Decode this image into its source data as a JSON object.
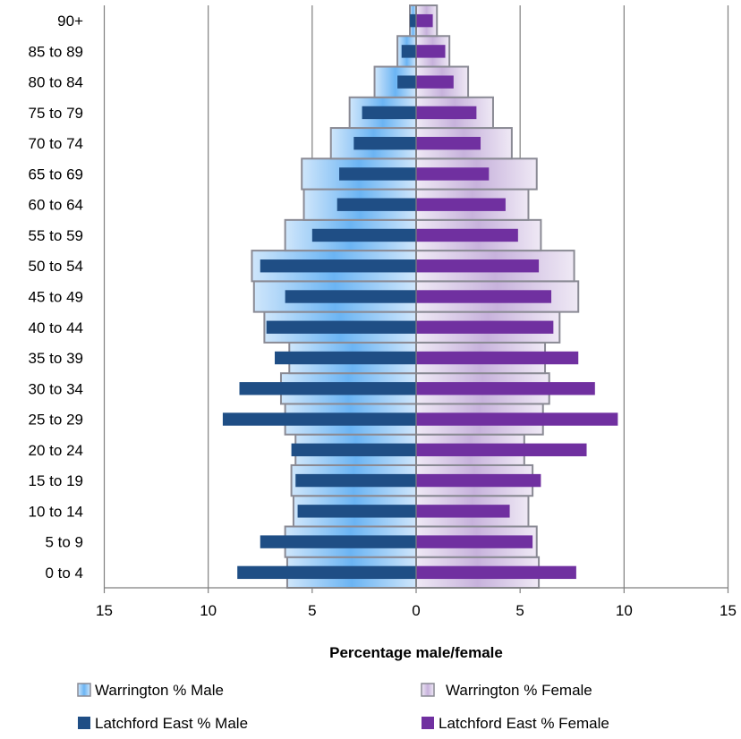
{
  "chart_data": {
    "type": "bar",
    "orientation": "horizontal-population-pyramid",
    "categories": [
      "0 to 4",
      "5 to 9",
      "10 to 14",
      "15 to 19",
      "20 to 24",
      "25 to 29",
      "30 to 34",
      "35 to 39",
      "40 to 44",
      "45 to 49",
      "50 to 54",
      "55 to 59",
      "60 to 64",
      "65 to 69",
      "70 to 74",
      "75 to 79",
      "80 to 84",
      "85 to 89",
      "90+"
    ],
    "series": [
      {
        "name": "Warrington % Male",
        "side": "left",
        "values": [
          6.2,
          6.3,
          5.9,
          6.0,
          5.8,
          6.3,
          6.5,
          6.1,
          7.3,
          7.8,
          7.9,
          6.3,
          5.4,
          5.5,
          4.1,
          3.2,
          2.0,
          0.9,
          0.3
        ]
      },
      {
        "name": "Warrington % Female",
        "side": "right",
        "values": [
          5.9,
          5.8,
          5.4,
          5.6,
          5.2,
          6.1,
          6.4,
          6.2,
          6.9,
          7.8,
          7.6,
          6.0,
          5.4,
          5.8,
          4.6,
          3.7,
          2.5,
          1.6,
          1.0
        ]
      },
      {
        "name": "Latchford East % Male",
        "side": "left",
        "values": [
          8.6,
          7.5,
          5.7,
          5.8,
          6.0,
          9.3,
          8.5,
          6.8,
          7.2,
          6.3,
          7.5,
          5.0,
          3.8,
          3.7,
          3.0,
          2.6,
          0.9,
          0.7,
          0.3
        ]
      },
      {
        "name": "Latchford East % Female",
        "side": "right",
        "values": [
          7.7,
          5.6,
          4.5,
          6.0,
          8.2,
          9.7,
          8.6,
          7.8,
          6.6,
          6.5,
          5.9,
          4.9,
          4.3,
          3.5,
          3.1,
          2.9,
          1.8,
          1.4,
          0.8
        ]
      }
    ],
    "xticks": [
      "15",
      "10",
      "5",
      "0",
      "5",
      "10",
      "15"
    ],
    "xlim": [
      -15,
      15
    ],
    "xlabel": "Percentage male/female",
    "grid": "vertical",
    "legend_position": "bottom",
    "colors": {
      "warrington_male_light": "#cfe6fb",
      "warrington_male_dark": "#6bb4f3",
      "warrington_female_light": "#efe9f5",
      "warrington_female_dark": "#c7b2dc",
      "outline": "#8a8a94",
      "latchford_male": "#1f4e85",
      "latchford_female": "#7030a0",
      "grid": "#7f7f7f"
    }
  }
}
